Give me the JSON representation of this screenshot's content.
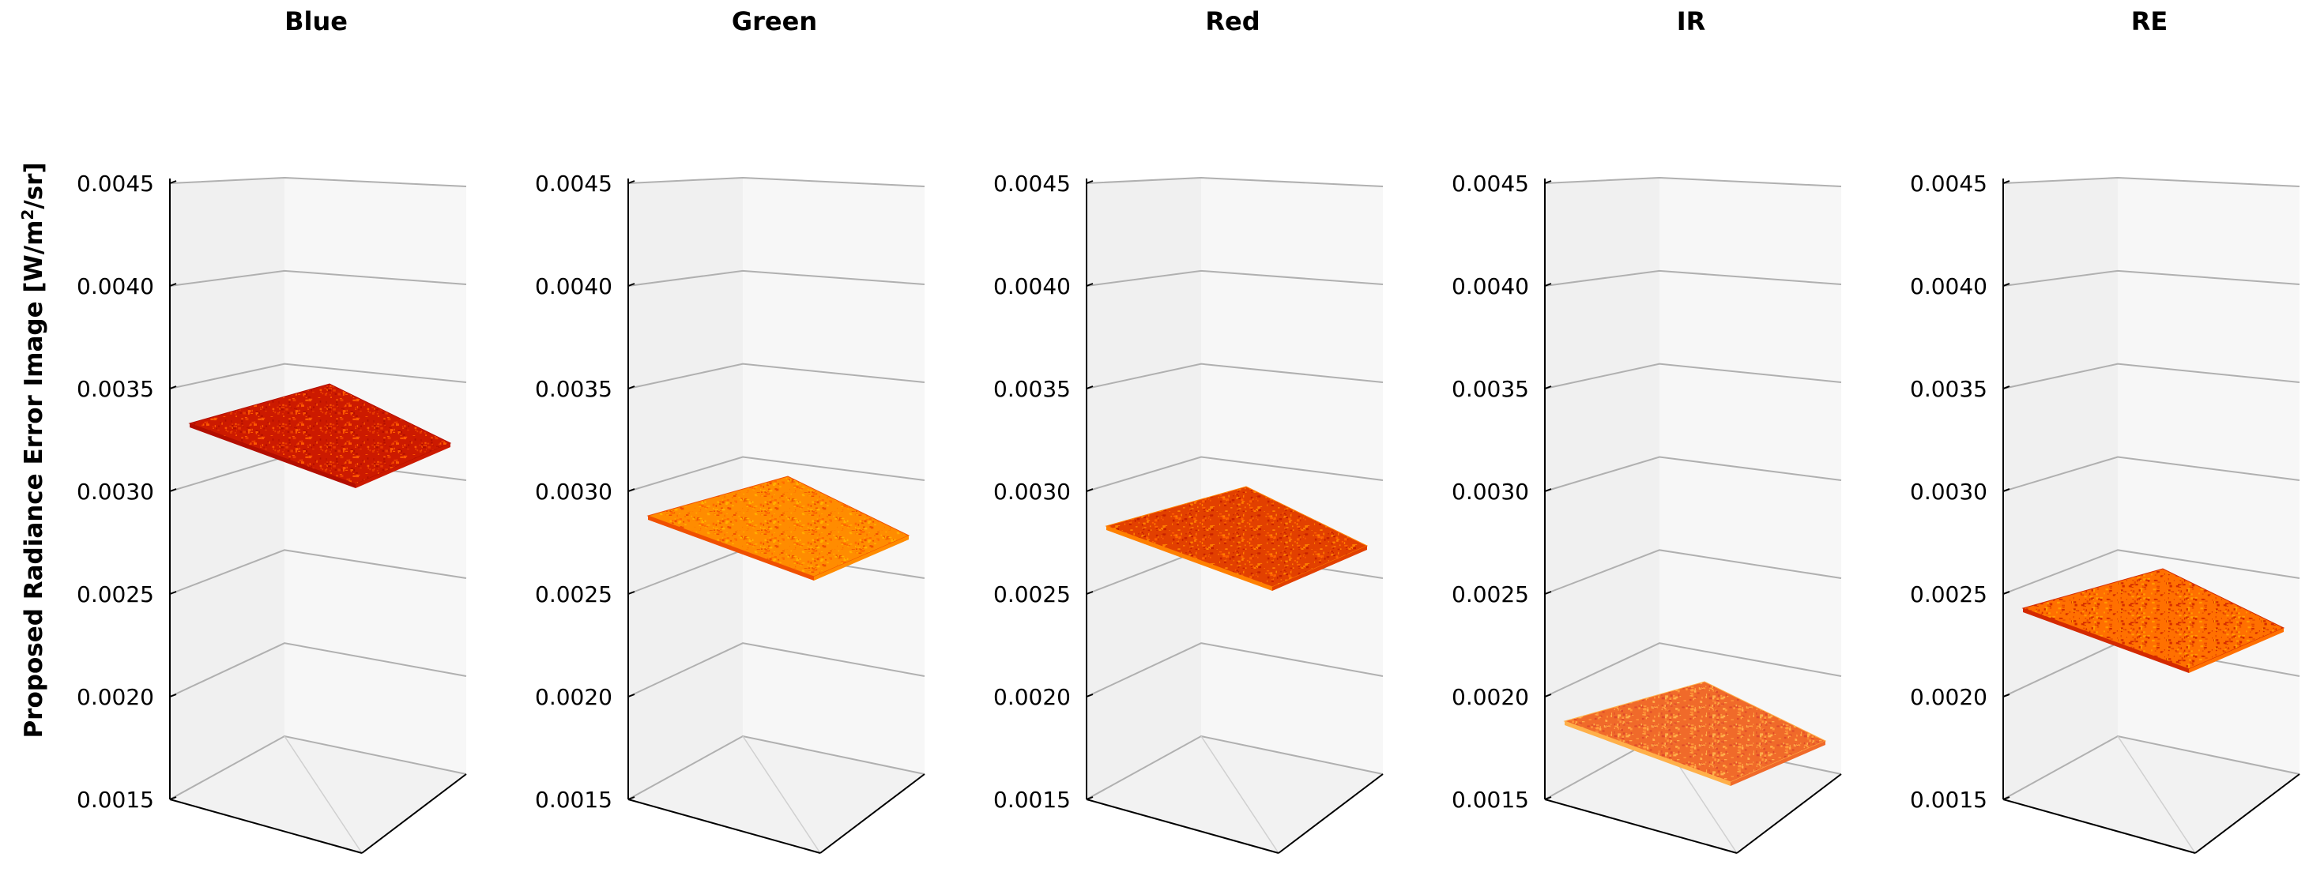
{
  "chart_data": {
    "type": "surface3d",
    "ylabel": {
      "prefix": "Proposed Radiance Error Image [W/m",
      "sup": "2",
      "suffix": "/sr]"
    },
    "zlim": [
      0.0015,
      0.0045
    ],
    "z_ticks": [
      "0.0015",
      "0.0020",
      "0.0025",
      "0.0030",
      "0.0035",
      "0.0040",
      "0.0045"
    ],
    "grid": true,
    "panels": [
      {
        "title": "Blue",
        "z": 0.00335,
        "colors": [
          "#cc1a00",
          "#e83a00",
          "#ff5a00",
          "#b30e00"
        ]
      },
      {
        "title": "Green",
        "z": 0.0029,
        "colors": [
          "#ff8c00",
          "#ffb000",
          "#ff6a00",
          "#f05000"
        ]
      },
      {
        "title": "Red",
        "z": 0.00285,
        "colors": [
          "#e24000",
          "#ff6000",
          "#c82000",
          "#ff8000"
        ]
      },
      {
        "title": "IR",
        "z": 0.0019,
        "colors": [
          "#f06a2a",
          "#ff9a3a",
          "#e04a2a",
          "#ffb04a"
        ]
      },
      {
        "title": "RE",
        "z": 0.00245,
        "colors": [
          "#ff7000",
          "#ff9a00",
          "#e84800",
          "#d42a00"
        ]
      }
    ]
  }
}
